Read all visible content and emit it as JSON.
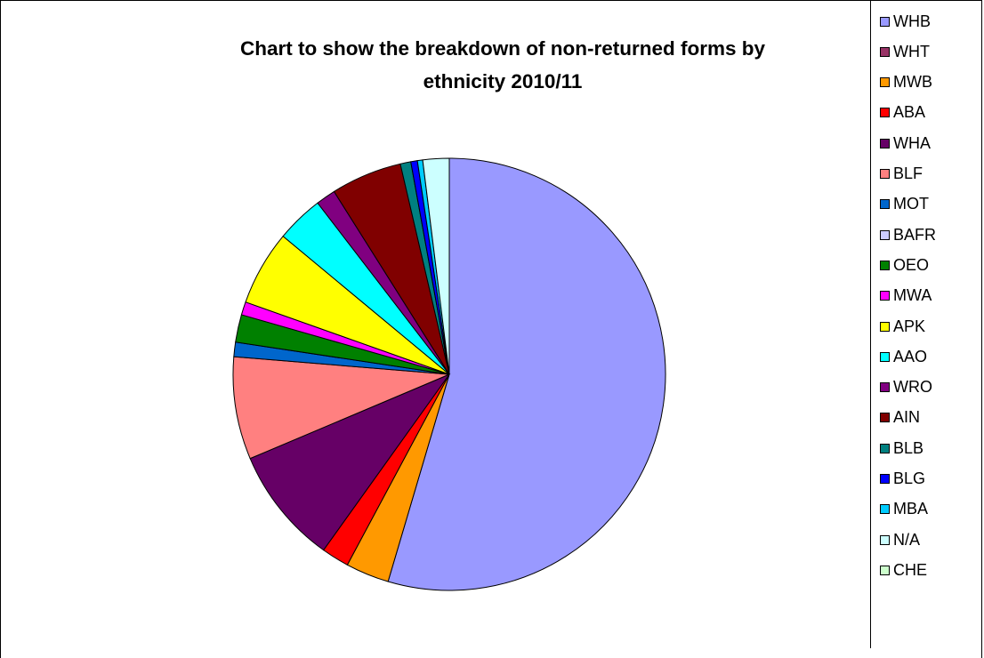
{
  "chart_data": {
    "type": "pie",
    "title": "Chart to show the breakdown of non-returned forms by ethnicity 2010/11",
    "title_lines": [
      "Chart to show the breakdown of non-returned forms by",
      "ethnicity 2010/11"
    ],
    "legend_position": "right",
    "start_angle_deg": 0,
    "direction": "clockwise",
    "slices": [
      {
        "label": "WHB",
        "value": 55.5,
        "color": "#9999FF"
      },
      {
        "label": "WHT",
        "value": 0.0,
        "color": "#993366"
      },
      {
        "label": "MWB",
        "value": 3.3,
        "color": "#FF9900"
      },
      {
        "label": "ABA",
        "value": 2.1,
        "color": "#FF0000"
      },
      {
        "label": "WHA",
        "value": 8.9,
        "color": "#660066"
      },
      {
        "label": "BLF",
        "value": 7.8,
        "color": "#FF8080"
      },
      {
        "label": "MOT",
        "value": 1.1,
        "color": "#0066CC"
      },
      {
        "label": "BAFR",
        "value": 0.0,
        "color": "#CCCCFF"
      },
      {
        "label": "OEO",
        "value": 2.1,
        "color": "#008000"
      },
      {
        "label": "MWA",
        "value": 1.0,
        "color": "#FF00FF"
      },
      {
        "label": "APK",
        "value": 5.7,
        "color": "#FFFF00"
      },
      {
        "label": "AAO",
        "value": 3.6,
        "color": "#00FFFF"
      },
      {
        "label": "WRO",
        "value": 1.5,
        "color": "#800080"
      },
      {
        "label": "AIN",
        "value": 5.4,
        "color": "#800000"
      },
      {
        "label": "BLB",
        "value": 0.8,
        "color": "#008080"
      },
      {
        "label": "BLG",
        "value": 0.5,
        "color": "#0000FF"
      },
      {
        "label": "MBA",
        "value": 0.4,
        "color": "#00CCFF"
      },
      {
        "label": "N/A",
        "value": 2.0,
        "color": "#CCFFFF"
      },
      {
        "label": "CHE",
        "value": 0.0,
        "color": "#CCFFCC"
      }
    ]
  }
}
